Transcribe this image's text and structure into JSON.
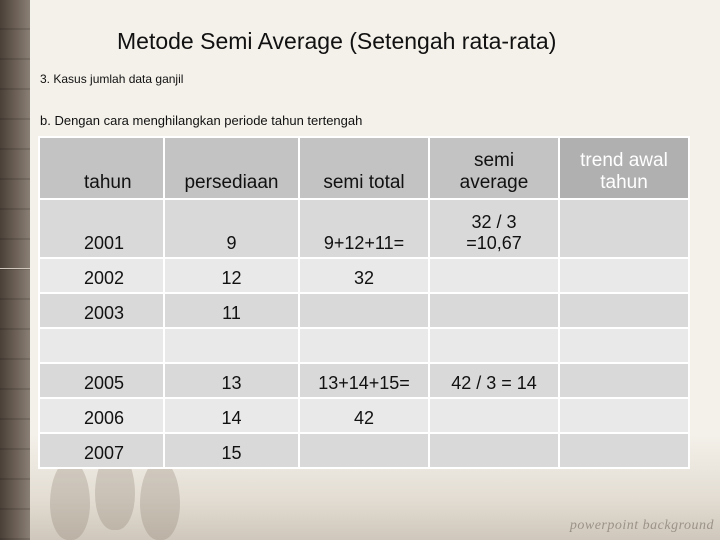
{
  "title": "Metode Semi Average (Setengah rata-rata)",
  "subtitle1": "3. Kasus jumlah data ganjil",
  "subtitle2": "b. Dengan cara menghilangkan periode tahun tertengah",
  "table": {
    "headers": [
      "tahun",
      "persediaan",
      "semi total",
      "semi\naverage",
      "trend awal\ntahun"
    ],
    "rows": [
      [
        "2001",
        "9",
        "9+12+11=",
        "32 / 3\n=10,67",
        ""
      ],
      [
        "2002",
        "12",
        "32",
        "",
        ""
      ],
      [
        "2003",
        "11",
        "",
        "",
        ""
      ],
      [
        "",
        "",
        "",
        "",
        ""
      ],
      [
        "2005",
        "13",
        "13+14+15=",
        "42 / 3 = 14",
        ""
      ],
      [
        "2006",
        "14",
        "42",
        "",
        ""
      ],
      [
        "2007",
        "15",
        "",
        "",
        ""
      ]
    ]
  },
  "footer_watermark": "powerpoint background",
  "colors": {
    "header_bg": "#c3c3c3",
    "row_bg_a": "#d9d9d9",
    "row_bg_b": "#e9e9e9",
    "page_bg": "#f4f1ea"
  }
}
